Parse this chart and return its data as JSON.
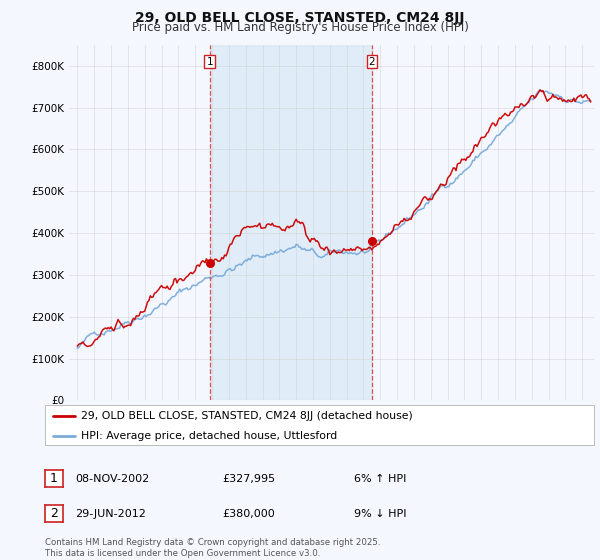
{
  "title": "29, OLD BELL CLOSE, STANSTED, CM24 8JJ",
  "subtitle": "Price paid vs. HM Land Registry's House Price Index (HPI)",
  "ylim": [
    0,
    850000
  ],
  "yticks": [
    0,
    100000,
    200000,
    300000,
    400000,
    500000,
    600000,
    700000,
    800000
  ],
  "ytick_labels": [
    "£0",
    "£100K",
    "£200K",
    "£300K",
    "£400K",
    "£500K",
    "£600K",
    "£700K",
    "£800K"
  ],
  "price_paid_color": "#cc0000",
  "hpi_color": "#7aabdb",
  "hpi_fill_color": "#d8e8f5",
  "bg_color": "#f5f7ff",
  "grid_color": "#cccccc",
  "legend_label_price": "29, OLD BELL CLOSE, STANSTED, CM24 8JJ (detached house)",
  "legend_label_hpi": "HPI: Average price, detached house, Uttlesford",
  "transaction1_date": "08-NOV-2002",
  "transaction1_price": 327995,
  "transaction1_label": "1",
  "transaction1_note": "6% ↑ HPI",
  "transaction2_date": "29-JUN-2012",
  "transaction2_price": 380000,
  "transaction2_label": "2",
  "transaction2_note": "9% ↓ HPI",
  "footer": "Contains HM Land Registry data © Crown copyright and database right 2025.\nThis data is licensed under the Open Government Licence v3.0.",
  "vline1_x": 2002.86,
  "vline2_x": 2012.49,
  "title_fontsize": 10,
  "subtitle_fontsize": 8.5,
  "xmin": 1994.5,
  "xmax": 2025.7
}
